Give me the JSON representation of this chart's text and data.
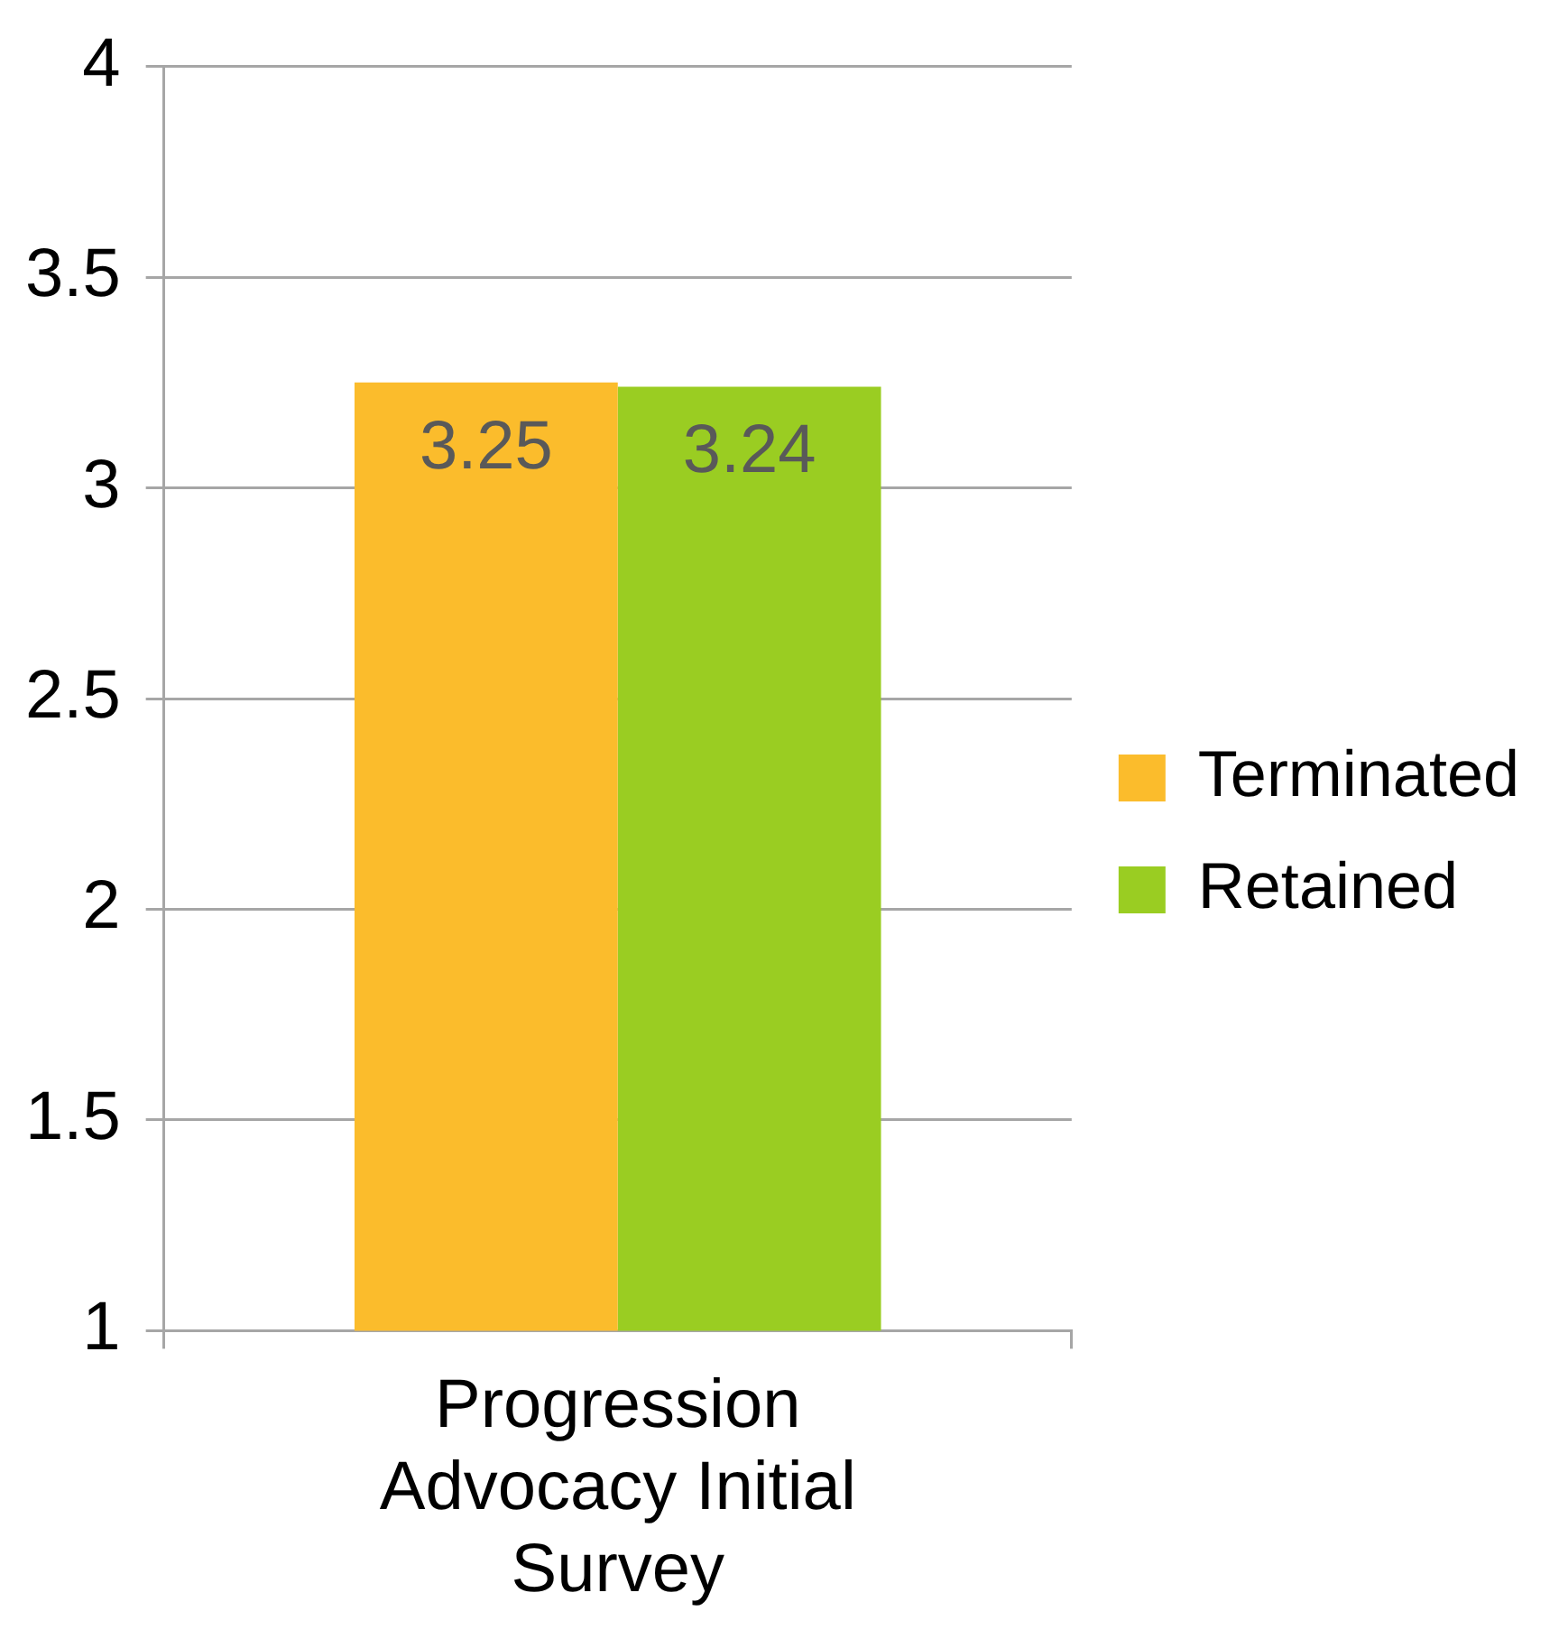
{
  "chart_data": {
    "type": "bar",
    "categories": [
      "Progression Advocacy Initial Survey"
    ],
    "series": [
      {
        "name": "Terminated",
        "color": "#fbbc2c",
        "values": [
          3.25
        ]
      },
      {
        "name": "Retained",
        "color": "#9acd22",
        "values": [
          3.24
        ]
      }
    ],
    "ylim": [
      1,
      4
    ],
    "yticks": [
      1,
      1.5,
      2,
      2.5,
      3,
      3.5,
      4
    ],
    "grid": "y",
    "legend": "right",
    "data_labels": true
  }
}
